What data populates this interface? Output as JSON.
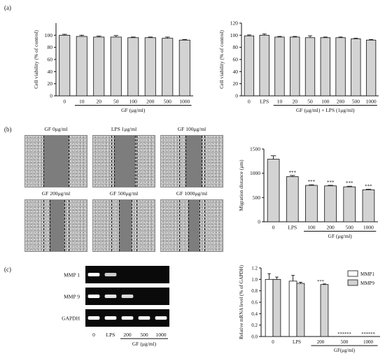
{
  "panels": {
    "a": "(a)",
    "b": "(b)",
    "c": "(c)"
  },
  "chart_data": [
    {
      "id": "a-left",
      "type": "bar",
      "categories": [
        "0",
        "10",
        "20",
        "50",
        "100",
        "200",
        "500",
        "1000"
      ],
      "values": [
        100,
        98,
        97,
        97,
        96,
        96,
        95,
        92
      ],
      "errors": [
        1.5,
        2,
        1.5,
        2.5,
        1,
        1,
        2,
        1
      ],
      "ylabel": "Cell viability (% of control)",
      "yticks": [
        0,
        20,
        40,
        60,
        80,
        100
      ],
      "ylim": [
        0,
        120
      ],
      "group_label": "GF (μg/ml)",
      "group_start": 1,
      "bar_color": "#d3d3d3"
    },
    {
      "id": "a-right",
      "type": "bar",
      "categories": [
        "0",
        "LPS",
        "10",
        "20",
        "50",
        "100",
        "200",
        "500",
        "1000"
      ],
      "values": [
        99,
        100,
        97,
        97,
        96,
        96,
        96,
        94,
        92
      ],
      "errors": [
        1.5,
        2,
        1,
        1,
        3,
        1,
        1,
        1,
        1
      ],
      "ylabel": "Cell viability (% of control)",
      "yticks": [
        0,
        20,
        40,
        60,
        80,
        100,
        120
      ],
      "ylim": [
        0,
        120
      ],
      "group_label": "GF (μg/ml) + LPS (1μg/ml)",
      "group_start": 2,
      "bar_color": "#d3d3d3"
    },
    {
      "id": "b-migration",
      "type": "bar",
      "categories": [
        "0",
        "LPS",
        "100",
        "200",
        "500",
        "1000"
      ],
      "values": [
        1290,
        930,
        750,
        740,
        720,
        660
      ],
      "errors": [
        70,
        25,
        12,
        12,
        12,
        12
      ],
      "significance": [
        "",
        "***",
        "***",
        "***",
        "***",
        "***"
      ],
      "ylabel": "Migration distance (μm)",
      "yticks": [
        0,
        500,
        1000,
        1500
      ],
      "ylim": [
        0,
        1500
      ],
      "group_label": "GF (μg/ml)",
      "group_start": 2,
      "bar_color": "#d3d3d3"
    },
    {
      "id": "c-mrna",
      "type": "bar",
      "categories": [
        "0",
        "LPS",
        "200",
        "500",
        "1000"
      ],
      "series": [
        {
          "name": "MMP1",
          "values": [
            1.0,
            0.97,
            0.0,
            0.0,
            0.0
          ],
          "errors": [
            0.1,
            0.1,
            0,
            0,
            0
          ],
          "color": "#ffffff"
        },
        {
          "name": "MMP9",
          "values": [
            1.0,
            0.93,
            0.91,
            0.0,
            0.0
          ],
          "errors": [
            0.04,
            0.02,
            0.01,
            0,
            0
          ],
          "color": "#d3d3d3"
        }
      ],
      "significance": [
        "",
        "",
        "***",
        "******",
        "******"
      ],
      "ylabel": "Relative mRNA level (% of GAPDH)",
      "yticks": [
        0.0,
        0.2,
        0.4,
        0.6,
        0.8,
        1.0,
        1.2
      ],
      "ylim": [
        0,
        1.2
      ],
      "group_label": "GF(μg/ml)",
      "group_start": 2,
      "legend_position": "top-right"
    }
  ],
  "scratch_assay": [
    {
      "label": "GF 0μg/ml"
    },
    {
      "label": "LPS 1μg/ml"
    },
    {
      "label": "GF 100μg/ml"
    },
    {
      "label": "GF 200μg/ml"
    },
    {
      "label": "GF 500μg/ml"
    },
    {
      "label": "GF 1000μg/ml"
    }
  ],
  "gel": {
    "rows": [
      "MMP 1",
      "MMP 9",
      "GAPDH"
    ],
    "lanes": [
      "0",
      "LPS",
      "200",
      "500",
      "1000"
    ],
    "band_intensity": [
      [
        1.0,
        0.8,
        0.0,
        0.0,
        0.0
      ],
      [
        1.0,
        0.9,
        0.85,
        0.0,
        0.0
      ],
      [
        1.0,
        1.0,
        0.95,
        0.95,
        0.95
      ]
    ],
    "group_label": "GF (μg/ml)"
  }
}
